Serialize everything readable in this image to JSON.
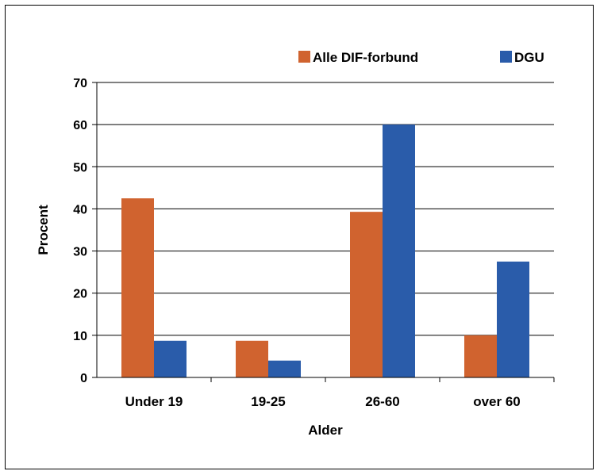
{
  "chart_data": {
    "type": "bar",
    "title": "",
    "xlabel": "Alder",
    "ylabel": "Procent",
    "categories": [
      "Under 19",
      "19-25",
      "26-60",
      "over 60"
    ],
    "series": [
      {
        "name": "Alle DIF-forbund",
        "color": "#D0632F",
        "values": [
          42.5,
          8.7,
          39.3,
          10.0
        ]
      },
      {
        "name": "DGU",
        "color": "#2A5CAA",
        "values": [
          8.7,
          4.0,
          60.0,
          27.5
        ]
      }
    ],
    "ylim": [
      0,
      70
    ],
    "yticks": [
      "0",
      "10",
      "20",
      "30",
      "40",
      "50",
      "60",
      "70"
    ],
    "grid": true,
    "legend_position": "top-right"
  }
}
